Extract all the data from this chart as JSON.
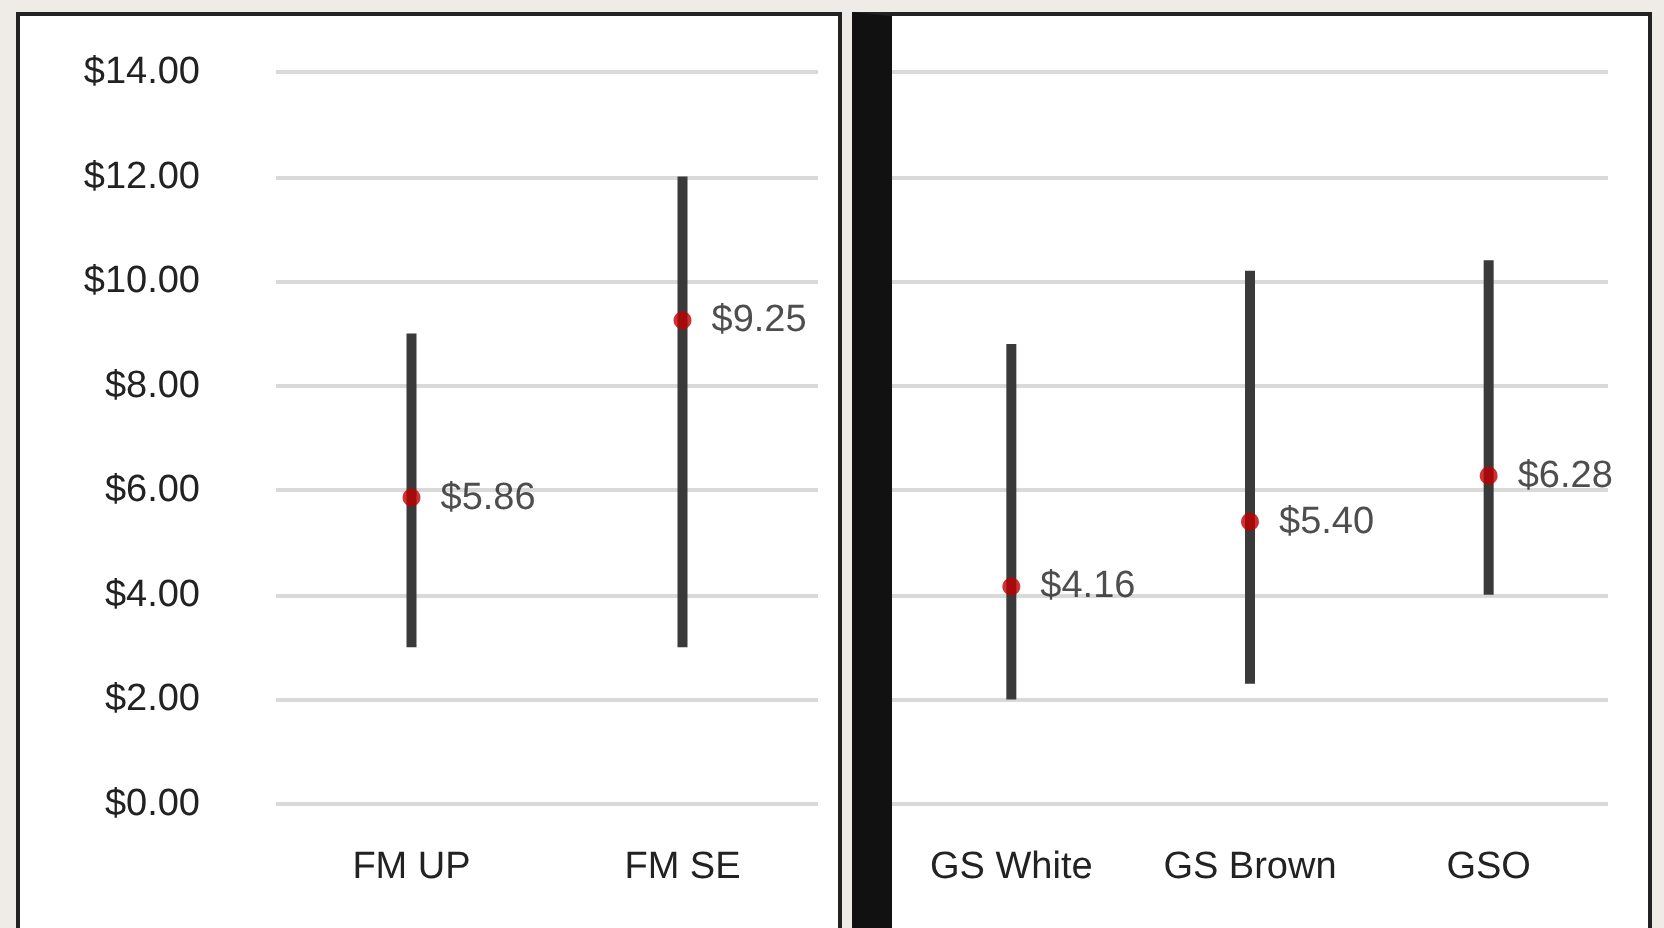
{
  "chart_data": [
    {
      "type": "bar",
      "categories": [
        "FM UP",
        "FM SE"
      ],
      "ylim": [
        0,
        14
      ],
      "yticks": [
        {
          "value": 0,
          "label": "$0.00"
        },
        {
          "value": 2,
          "label": "$2.00"
        },
        {
          "value": 4,
          "label": "$4.00"
        },
        {
          "value": 6,
          "label": "$6.00"
        },
        {
          "value": 8,
          "label": "$8.00"
        },
        {
          "value": 10,
          "label": "$10.00"
        },
        {
          "value": 12,
          "label": "$12.00"
        },
        {
          "value": 14,
          "label": "$14.00"
        }
      ],
      "grid": "y",
      "marker": "circle",
      "series": [
        {
          "type": "bar",
          "color": "#3a3a3a",
          "base": [
            3.0,
            3.0
          ],
          "values": [
            6.0,
            9.0
          ]
        },
        {
          "type": "scatter",
          "color": "#c00000",
          "x": [
            "FM UP",
            "FM SE"
          ],
          "values": [
            5.86,
            9.25
          ],
          "value_labels": [
            "$5.86",
            "$9.25"
          ]
        }
      ]
    },
    {
      "type": "bar",
      "categories": [
        "GS White",
        "GS Brown",
        "GSO"
      ],
      "ylim": [
        0,
        14
      ],
      "yticks": [
        {
          "value": 0,
          "label": null
        },
        {
          "value": 2,
          "label": null
        },
        {
          "value": 4,
          "label": null
        },
        {
          "value": 6,
          "label": null
        },
        {
          "value": 8,
          "label": null
        },
        {
          "value": 10,
          "label": null
        },
        {
          "value": 12,
          "label": null
        },
        {
          "value": 14,
          "label": null
        }
      ],
      "grid": "y",
      "marker": "circle",
      "tick_labels": "x",
      "series": [
        {
          "type": "bar",
          "color": "#3a3a3a",
          "base": [
            2.0,
            2.3,
            4.0
          ],
          "values": [
            6.8,
            7.9,
            6.4
          ]
        },
        {
          "type": "scatter",
          "color": "#c00000",
          "x": [
            "GS White",
            "GS Brown",
            "GSO"
          ],
          "values": [
            4.16,
            5.4,
            6.28
          ],
          "value_labels": [
            "$4.16",
            "$5.40",
            "$6.28"
          ]
        }
      ]
    }
  ]
}
